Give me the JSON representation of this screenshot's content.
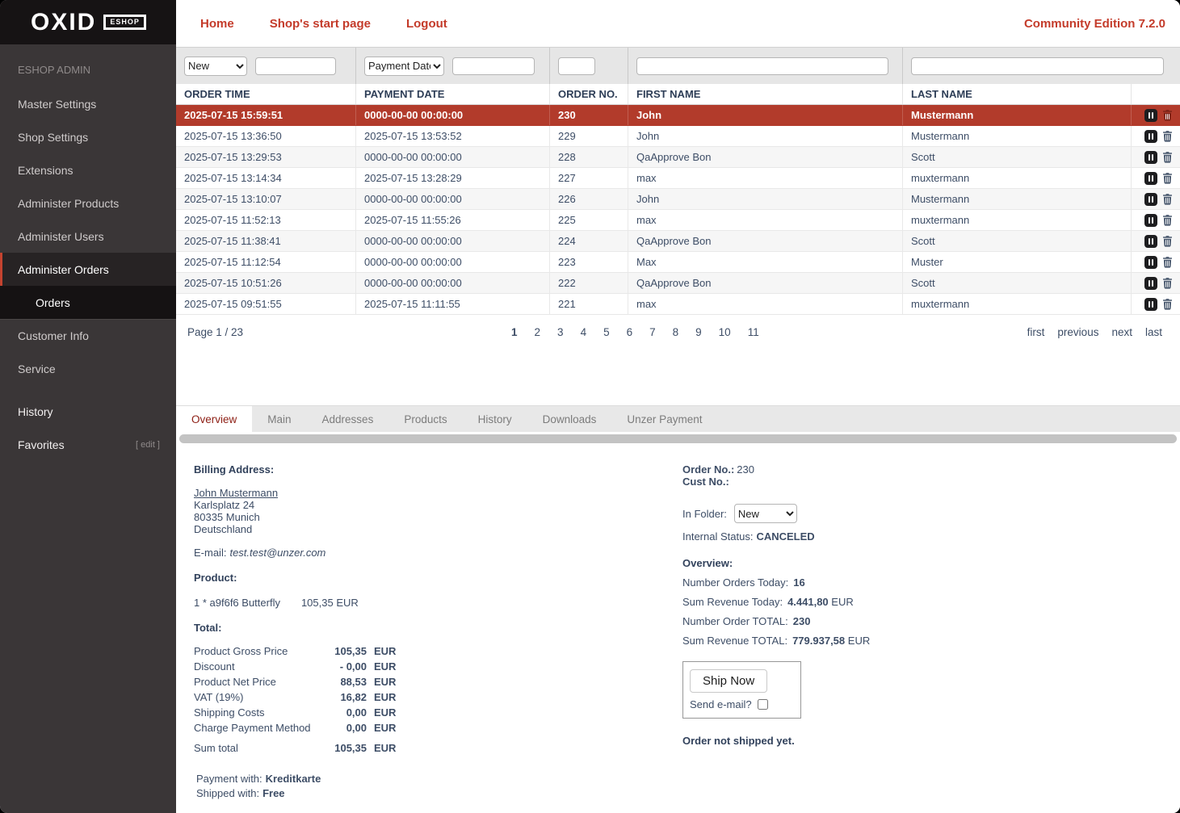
{
  "colors": {
    "accent_red": "#c43b2a",
    "selected_row_red": "#b23b2b",
    "active_tab_red": "#8e2016",
    "navy_text": "#3d4d66",
    "sidebar_bg": "#3a3637"
  },
  "brand": {
    "logo_text": "OXID",
    "logo_badge": "ESHOP",
    "admin_label": "ESHOP ADMIN",
    "edition_label": "Community Edition 7.2.0"
  },
  "topnav": {
    "items": [
      "Home",
      "Shop's start page",
      "Logout"
    ]
  },
  "sidebar": {
    "items": [
      {
        "label": "Master Settings",
        "state": "normal"
      },
      {
        "label": "Shop Settings",
        "state": "normal"
      },
      {
        "label": "Extensions",
        "state": "normal"
      },
      {
        "label": "Administer Products",
        "state": "normal"
      },
      {
        "label": "Administer Users",
        "state": "normal"
      },
      {
        "label": "Administer Orders",
        "state": "active-parent"
      },
      {
        "label": "Orders",
        "state": "active-sub"
      },
      {
        "label": "Customer Info",
        "state": "section-start"
      },
      {
        "label": "Service",
        "state": "normal"
      },
      {
        "label": "History",
        "state": "bright gap-before"
      },
      {
        "label": "Favorites",
        "state": "bright",
        "suffix": "[ edit ]"
      }
    ]
  },
  "orders_list": {
    "filter": {
      "folder_select_value": "New",
      "search_select_value": "Payment Date"
    },
    "columns": [
      "ORDER TIME",
      "PAYMENT DATE",
      "ORDER NO.",
      "FIRST NAME",
      "LAST NAME"
    ],
    "rows": [
      {
        "order_time": "2025-07-15 15:59:51",
        "payment_date": "0000-00-00 00:00:00",
        "order_no": "230",
        "first_name": "John",
        "last_name": "Mustermann",
        "selected": true
      },
      {
        "order_time": "2025-07-15 13:36:50",
        "payment_date": "2025-07-15 13:53:52",
        "order_no": "229",
        "first_name": "John",
        "last_name": "Mustermann",
        "selected": false
      },
      {
        "order_time": "2025-07-15 13:29:53",
        "payment_date": "0000-00-00 00:00:00",
        "order_no": "228",
        "first_name": "QaApprove Bon",
        "last_name": "Scott",
        "selected": false
      },
      {
        "order_time": "2025-07-15 13:14:34",
        "payment_date": "2025-07-15 13:28:29",
        "order_no": "227",
        "first_name": "max",
        "last_name": "muxtermann",
        "selected": false
      },
      {
        "order_time": "2025-07-15 13:10:07",
        "payment_date": "0000-00-00 00:00:00",
        "order_no": "226",
        "first_name": "John",
        "last_name": "Mustermann",
        "selected": false
      },
      {
        "order_time": "2025-07-15 11:52:13",
        "payment_date": "2025-07-15 11:55:26",
        "order_no": "225",
        "first_name": "max",
        "last_name": "muxtermann",
        "selected": false
      },
      {
        "order_time": "2025-07-15 11:38:41",
        "payment_date": "0000-00-00 00:00:00",
        "order_no": "224",
        "first_name": "QaApprove Bon",
        "last_name": "Scott",
        "selected": false
      },
      {
        "order_time": "2025-07-15 11:12:54",
        "payment_date": "0000-00-00 00:00:00",
        "order_no": "223",
        "first_name": "Max",
        "last_name": "Muster",
        "selected": false
      },
      {
        "order_time": "2025-07-15 10:51:26",
        "payment_date": "0000-00-00 00:00:00",
        "order_no": "222",
        "first_name": "QaApprove Bon",
        "last_name": "Scott",
        "selected": false
      },
      {
        "order_time": "2025-07-15 09:51:55",
        "payment_date": "2025-07-15 11:11:55",
        "order_no": "221",
        "first_name": "max",
        "last_name": "muxtermann",
        "selected": false
      }
    ],
    "pagination": {
      "page_label": "Page 1 / 23",
      "pages": [
        "1",
        "2",
        "3",
        "4",
        "5",
        "6",
        "7",
        "8",
        "9",
        "10",
        "11"
      ],
      "current_page": "1",
      "links": [
        "first",
        "previous",
        "next",
        "last"
      ]
    }
  },
  "tabs": {
    "items": [
      {
        "label": "Overview",
        "active": true
      },
      {
        "label": "Main",
        "active": false
      },
      {
        "label": "Addresses",
        "active": false
      },
      {
        "label": "Products",
        "active": false
      },
      {
        "label": "History",
        "active": false
      },
      {
        "label": "Downloads",
        "active": false
      },
      {
        "label": "Unzer Payment",
        "active": false
      }
    ]
  },
  "detail": {
    "billing": {
      "heading": "Billing Address:",
      "name": "John Mustermann",
      "address_lines": [
        "Karlsplatz 24",
        "80335 Munich",
        "Deutschland"
      ],
      "email_label": "E-mail:",
      "email": "test.test@unzer.com"
    },
    "product": {
      "heading": "Product:",
      "line": "1 * a9f6f6 Butterfly",
      "price": "105,35 EUR"
    },
    "total": {
      "heading": "Total:",
      "rows": [
        {
          "label": "Product Gross Price",
          "value": "105,35",
          "currency": "EUR",
          "emphasis": false
        },
        {
          "label": "Discount",
          "value": "- 0,00",
          "currency": "EUR",
          "emphasis": false
        },
        {
          "label": "Product Net Price",
          "value": "88,53",
          "currency": "EUR",
          "emphasis": false
        },
        {
          "label": "VAT (19%)",
          "value": "16,82",
          "currency": "EUR",
          "emphasis": false
        },
        {
          "label": "Shipping Costs",
          "value": "0,00",
          "currency": "EUR",
          "emphasis": false
        },
        {
          "label": "Charge Payment Method",
          "value": "0,00",
          "currency": "EUR",
          "emphasis": false
        },
        {
          "label": "Sum total",
          "value": "105,35",
          "currency": "EUR",
          "emphasis": true
        }
      ]
    },
    "payment": {
      "payment_label": "Payment with:",
      "payment_value": "Kreditkarte",
      "shipping_label": "Shipped with:",
      "shipping_value": "Free"
    },
    "order_info": {
      "order_no_label": "Order No.:",
      "order_no": "230",
      "cust_no_label": "Cust No.:",
      "in_folder_label": "In Folder:",
      "folder_value": "New",
      "status_label": "Internal Status:",
      "status_value": "CANCELED"
    },
    "overview": {
      "heading": "Overview:",
      "stats": [
        {
          "label": "Number Orders Today:",
          "value": "16",
          "suffix": ""
        },
        {
          "label": "Sum Revenue Today:",
          "value": "4.441,80",
          "suffix": " EUR"
        },
        {
          "label": "Number Order TOTAL:",
          "value": "230",
          "suffix": ""
        },
        {
          "label": "Sum Revenue TOTAL:",
          "value": "779.937,58",
          "suffix": " EUR"
        }
      ]
    },
    "ship": {
      "button_label": "Ship Now",
      "send_email_label": "Send e-mail?"
    },
    "shipped_status": "Order not shipped yet."
  }
}
